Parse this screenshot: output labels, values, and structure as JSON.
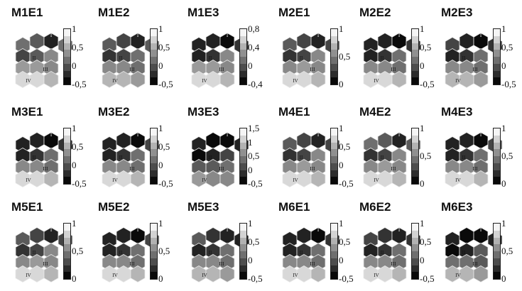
{
  "figure": {
    "panels": [
      {
        "title": "M1E1",
        "scale": [
          "1",
          "0,5",
          "0",
          "-0,5"
        ],
        "cells": [
          5,
          4,
          1,
          5,
          3,
          4,
          6,
          7,
          7,
          6,
          9,
          9,
          8
        ],
        "labels": [
          "I",
          "II",
          "III",
          "IV"
        ]
      },
      {
        "title": "M1E2",
        "scale": [
          "1",
          "0,5",
          "0",
          "-0,5"
        ],
        "cells": [
          4,
          3,
          1,
          4,
          2,
          3,
          5,
          6,
          6,
          5,
          8,
          8,
          7
        ],
        "labels": [
          "I",
          "II",
          "III",
          "IV"
        ]
      },
      {
        "title": "M1E3",
        "scale": [
          "0,8",
          "0,4",
          "0",
          "-0,4"
        ],
        "cells": [
          1,
          1,
          0,
          2,
          1,
          2,
          6,
          7,
          7,
          6,
          9,
          9,
          8
        ],
        "labels": [
          "I",
          "II",
          "III",
          "IV"
        ]
      },
      {
        "title": "M2E1",
        "scale": [
          "1",
          "0,5",
          "0"
        ],
        "cells": [
          4,
          3,
          1,
          3,
          2,
          3,
          6,
          6,
          7,
          6,
          9,
          9,
          8
        ],
        "labels": [
          "I",
          "II",
          "III",
          "IV"
        ]
      },
      {
        "title": "M2E2",
        "scale": [
          "1",
          "0,5",
          "0",
          "-0,5"
        ],
        "cells": [
          1,
          1,
          0,
          2,
          1,
          2,
          5,
          6,
          6,
          5,
          9,
          9,
          8
        ],
        "labels": [
          "I",
          "II",
          "III",
          "IV"
        ]
      },
      {
        "title": "M2E3",
        "scale": [
          "1",
          "0,5",
          "0",
          "-0,5"
        ],
        "cells": [
          3,
          1,
          0,
          2,
          1,
          2,
          5,
          6,
          6,
          5,
          8,
          8,
          7
        ],
        "labels": [
          "I",
          "II",
          "III",
          "IV"
        ]
      },
      {
        "title": "M3E1",
        "scale": [
          "1",
          "0,5",
          "0",
          "-0,5"
        ],
        "cells": [
          1,
          1,
          0,
          2,
          1,
          2,
          5,
          6,
          6,
          5,
          9,
          9,
          8
        ],
        "labels": [
          "I",
          "II",
          "III",
          "IV"
        ]
      },
      {
        "title": "M3E2",
        "scale": [
          "1",
          "0,5",
          "0",
          "-0,5"
        ],
        "cells": [
          1,
          1,
          0,
          3,
          1,
          2,
          5,
          6,
          6,
          5,
          9,
          9,
          8
        ],
        "labels": [
          "I",
          "II",
          "III",
          "IV"
        ]
      },
      {
        "title": "M3E3",
        "scale": [
          "1,5",
          "1",
          "0,5",
          "0",
          "-0,5"
        ],
        "cells": [
          1,
          0,
          0,
          1,
          0,
          1,
          3,
          4,
          4,
          5,
          7,
          6,
          6
        ],
        "labels": [
          "I",
          "II",
          "III",
          "IV"
        ]
      },
      {
        "title": "M4E1",
        "scale": [
          "1",
          "0,5",
          "0",
          "-0,5"
        ],
        "cells": [
          4,
          3,
          1,
          3,
          2,
          3,
          6,
          6,
          7,
          6,
          9,
          9,
          8
        ],
        "labels": [
          "I",
          "II",
          "III",
          "IV"
        ]
      },
      {
        "title": "M4E2",
        "scale": [
          "1",
          "0,5",
          "0"
        ],
        "cells": [
          5,
          4,
          1,
          4,
          2,
          3,
          6,
          6,
          7,
          6,
          9,
          9,
          8
        ],
        "labels": [
          "I",
          "II",
          "III",
          "IV"
        ]
      },
      {
        "title": "M4E3",
        "scale": [
          "1",
          "0,5",
          "0"
        ],
        "cells": [
          1,
          1,
          0,
          3,
          1,
          2,
          5,
          6,
          6,
          5,
          9,
          9,
          8
        ],
        "labels": [
          "I",
          "II",
          "III",
          "IV"
        ]
      },
      {
        "title": "M5E1",
        "scale": [
          "1",
          "0,5",
          "0"
        ],
        "cells": [
          4,
          3,
          1,
          3,
          2,
          3,
          6,
          6,
          7,
          6,
          9,
          9,
          8
        ],
        "labels": [
          "I",
          "II",
          "III",
          "IV"
        ]
      },
      {
        "title": "M5E2",
        "scale": [
          "1",
          "0,5",
          "0"
        ],
        "cells": [
          1,
          1,
          0,
          3,
          1,
          2,
          5,
          6,
          6,
          5,
          9,
          9,
          8
        ],
        "labels": [
          "I",
          "II",
          "III",
          "IV"
        ]
      },
      {
        "title": "M5E3",
        "scale": [
          "1",
          "0,5",
          "0",
          "-0,5"
        ],
        "cells": [
          4,
          2,
          1,
          1,
          1,
          2,
          5,
          6,
          6,
          5,
          8,
          8,
          7
        ],
        "labels": [
          "I",
          "II",
          "III",
          "IV"
        ]
      },
      {
        "title": "M6E1",
        "scale": [
          "1",
          "0,5",
          "0",
          "-0,5"
        ],
        "cells": [
          1,
          1,
          0,
          2,
          1,
          2,
          5,
          6,
          6,
          5,
          9,
          9,
          8
        ],
        "labels": [
          "I",
          "II",
          "III",
          "IV"
        ]
      },
      {
        "title": "M6E2",
        "scale": [
          "1",
          "0,5",
          "0",
          "-0,5"
        ],
        "cells": [
          3,
          2,
          1,
          2,
          1,
          2,
          5,
          6,
          6,
          5,
          9,
          9,
          8
        ],
        "labels": [
          "I",
          "II",
          "III",
          "IV"
        ]
      },
      {
        "title": "M6E3",
        "scale": [
          "1",
          "0,5",
          "0"
        ],
        "cells": [
          1,
          0,
          0,
          1,
          0,
          1,
          4,
          5,
          5,
          4,
          8,
          8,
          7
        ],
        "labels": [
          "I",
          "II",
          "III",
          "IV"
        ]
      }
    ]
  }
}
